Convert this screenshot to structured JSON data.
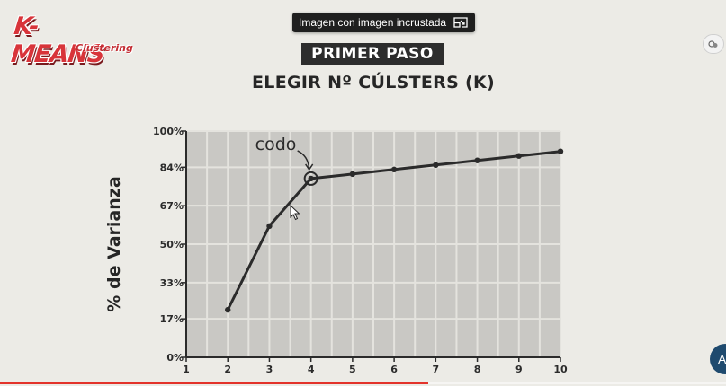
{
  "logo": {
    "main": "K-MEANS",
    "sub": "Clustering"
  },
  "pip_tooltip": {
    "label": "Imagen con imagen incrustada",
    "icon": "picture-in-picture-icon"
  },
  "slide": {
    "step": "PRIMER PASO",
    "subtitle": "ELEGIR Nº CÚLSTERS (K)"
  },
  "overlay": {
    "side_icon": "share-icon",
    "edge_label": "A"
  },
  "video_progress": 0.59,
  "chart_data": {
    "type": "line",
    "x": [
      2,
      3,
      4,
      5,
      6,
      7,
      8,
      9,
      10
    ],
    "y": [
      21,
      58,
      79,
      81,
      83,
      85,
      87,
      89,
      91
    ],
    "x_ticks": [
      "1",
      "2",
      "3",
      "4",
      "5",
      "6",
      "7",
      "8",
      "9",
      "10"
    ],
    "y_ticks": [
      "0%",
      "17%",
      "33%",
      "50%",
      "67%",
      "84%",
      "100%"
    ],
    "y_tick_values": [
      0,
      17,
      33,
      50,
      67,
      84,
      100
    ],
    "xlim": [
      1,
      10
    ],
    "ylim": [
      0,
      100
    ],
    "ylabel": "% de Varianza",
    "xlabel": "",
    "grid": true,
    "line_color": "#2b2b2b",
    "annotation": {
      "text": "codo",
      "x": 4,
      "y": 79
    }
  }
}
